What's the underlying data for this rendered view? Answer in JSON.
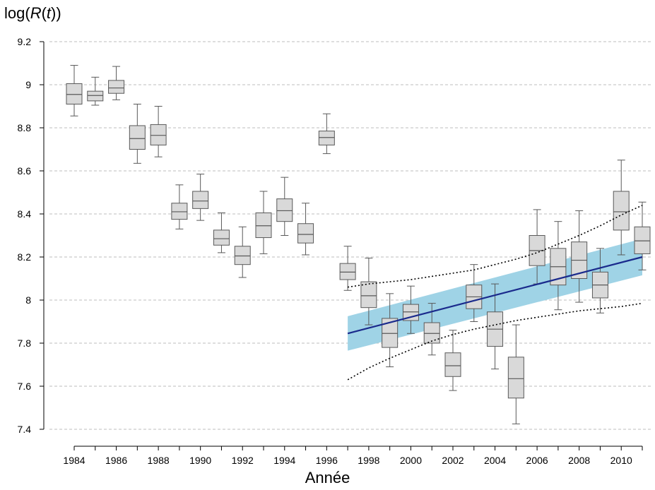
{
  "chart_data": {
    "type": "boxplot",
    "ylabel": "log(R(t))",
    "ylabel_parts": {
      "prefix": "log(",
      "fn": "R",
      "paren_open": "(",
      "var": "t",
      "suffix": "))"
    },
    "xlabel": "Année",
    "ylim": [
      7.4,
      9.2
    ],
    "yticks": [
      7.4,
      7.6,
      7.8,
      8,
      8.2,
      8.4,
      8.6,
      8.8,
      9,
      9.2
    ],
    "ytick_labels": [
      "7.4",
      "7.6",
      "7.8",
      "8",
      "8.2",
      "8.4",
      "8.6",
      "8.8",
      "9",
      "9.2"
    ],
    "xlim": [
      1984,
      2011
    ],
    "xticks": [
      1984,
      1986,
      1988,
      1990,
      1992,
      1994,
      1996,
      1998,
      2000,
      2002,
      2004,
      2006,
      2008,
      2010
    ],
    "xtick_labels": [
      "1984",
      "1986",
      "1988",
      "1990",
      "1992",
      "1994",
      "1996",
      "1998",
      "2000",
      "2002",
      "2004",
      "2006",
      "2008",
      "2010"
    ],
    "grid": "horizontal-dashed",
    "colors": {
      "box_fill": "#d9d9d9",
      "box_stroke": "#595959",
      "trend_line": "#1a2a8c",
      "band": "#9fd3e6",
      "grid": "#bdbdbd"
    },
    "boxes": [
      {
        "year": 1984,
        "whisker_low": 8.855,
        "q1": 8.91,
        "median": 8.955,
        "q3": 9.005,
        "whisker_high": 9.09
      },
      {
        "year": 1985,
        "whisker_low": 8.905,
        "q1": 8.925,
        "median": 8.95,
        "q3": 8.97,
        "whisker_high": 9.035
      },
      {
        "year": 1986,
        "whisker_low": 8.93,
        "q1": 8.96,
        "median": 8.985,
        "q3": 9.02,
        "whisker_high": 9.085
      },
      {
        "year": 1987,
        "whisker_low": 8.635,
        "q1": 8.7,
        "median": 8.75,
        "q3": 8.81,
        "whisker_high": 8.91
      },
      {
        "year": 1988,
        "whisker_low": 8.665,
        "q1": 8.72,
        "median": 8.765,
        "q3": 8.815,
        "whisker_high": 8.9
      },
      {
        "year": 1989,
        "whisker_low": 8.33,
        "q1": 8.375,
        "median": 8.41,
        "q3": 8.45,
        "whisker_high": 8.535
      },
      {
        "year": 1990,
        "whisker_low": 8.37,
        "q1": 8.425,
        "median": 8.46,
        "q3": 8.505,
        "whisker_high": 8.585
      },
      {
        "year": 1991,
        "whisker_low": 8.22,
        "q1": 8.255,
        "median": 8.285,
        "q3": 8.325,
        "whisker_high": 8.405
      },
      {
        "year": 1992,
        "whisker_low": 8.105,
        "q1": 8.165,
        "median": 8.205,
        "q3": 8.25,
        "whisker_high": 8.34
      },
      {
        "year": 1993,
        "whisker_low": 8.215,
        "q1": 8.29,
        "median": 8.345,
        "q3": 8.405,
        "whisker_high": 8.505
      },
      {
        "year": 1994,
        "whisker_low": 8.3,
        "q1": 8.365,
        "median": 8.415,
        "q3": 8.47,
        "whisker_high": 8.57
      },
      {
        "year": 1995,
        "whisker_low": 8.21,
        "q1": 8.265,
        "median": 8.305,
        "q3": 8.355,
        "whisker_high": 8.45
      },
      {
        "year": 1996,
        "whisker_low": 8.68,
        "q1": 8.72,
        "median": 8.755,
        "q3": 8.785,
        "whisker_high": 8.865
      },
      {
        "year": 1997,
        "whisker_low": 8.045,
        "q1": 8.095,
        "median": 8.13,
        "q3": 8.17,
        "whisker_high": 8.25
      },
      {
        "year": 1998,
        "whisker_low": 7.885,
        "q1": 7.965,
        "median": 8.02,
        "q3": 8.085,
        "whisker_high": 8.195
      },
      {
        "year": 1999,
        "whisker_low": 7.69,
        "q1": 7.78,
        "median": 7.845,
        "q3": 7.915,
        "whisker_high": 8.03
      },
      {
        "year": 2000,
        "whisker_low": 7.845,
        "q1": 7.905,
        "median": 7.945,
        "q3": 7.98,
        "whisker_high": 8.065
      },
      {
        "year": 2001,
        "whisker_low": 7.745,
        "q1": 7.8,
        "median": 7.845,
        "q3": 7.895,
        "whisker_high": 7.985
      },
      {
        "year": 2002,
        "whisker_low": 7.58,
        "q1": 7.645,
        "median": 7.695,
        "q3": 7.755,
        "whisker_high": 7.86
      },
      {
        "year": 2003,
        "whisker_low": 7.9,
        "q1": 7.96,
        "median": 8.015,
        "q3": 8.07,
        "whisker_high": 8.165
      },
      {
        "year": 2004,
        "whisker_low": 7.68,
        "q1": 7.785,
        "median": 7.865,
        "q3": 7.945,
        "whisker_high": 8.075
      },
      {
        "year": 2005,
        "whisker_low": 7.425,
        "q1": 7.545,
        "median": 7.635,
        "q3": 7.735,
        "whisker_high": 7.885
      },
      {
        "year": 2006,
        "whisker_low": 8.075,
        "q1": 8.16,
        "median": 8.23,
        "q3": 8.3,
        "whisker_high": 8.42
      },
      {
        "year": 2007,
        "whisker_low": 7.955,
        "q1": 8.07,
        "median": 8.155,
        "q3": 8.24,
        "whisker_high": 8.365
      },
      {
        "year": 2008,
        "whisker_low": 7.99,
        "q1": 8.1,
        "median": 8.185,
        "q3": 8.27,
        "whisker_high": 8.415
      },
      {
        "year": 2009,
        "whisker_low": 7.94,
        "q1": 8.01,
        "median": 8.07,
        "q3": 8.13,
        "whisker_high": 8.24
      },
      {
        "year": 2010,
        "whisker_low": 8.21,
        "q1": 8.325,
        "median": 8.41,
        "q3": 8.505,
        "whisker_high": 8.65
      },
      {
        "year": 2011,
        "whisker_low": 8.14,
        "q1": 8.215,
        "median": 8.275,
        "q3": 8.34,
        "whisker_high": 8.455
      }
    ],
    "trend": {
      "x": [
        1997,
        2011
      ],
      "fit": [
        7.845,
        8.2
      ],
      "band_lower": [
        7.765,
        8.115
      ],
      "band_upper": [
        7.925,
        8.285
      ],
      "prediction_lower": [
        [
          1997,
          7.63
        ],
        [
          1998,
          7.685
        ],
        [
          1999,
          7.73
        ],
        [
          2000,
          7.77
        ],
        [
          2001,
          7.81
        ],
        [
          2002,
          7.84
        ],
        [
          2003,
          7.865
        ],
        [
          2004,
          7.885
        ],
        [
          2005,
          7.905
        ],
        [
          2006,
          7.92
        ],
        [
          2007,
          7.935
        ],
        [
          2008,
          7.95
        ],
        [
          2009,
          7.96
        ],
        [
          2010,
          7.97
        ],
        [
          2011,
          7.985
        ]
      ],
      "prediction_upper": [
        [
          1997,
          8.06
        ],
        [
          1998,
          8.075
        ],
        [
          1999,
          8.085
        ],
        [
          2000,
          8.095
        ],
        [
          2001,
          8.11
        ],
        [
          2002,
          8.125
        ],
        [
          2003,
          8.14
        ],
        [
          2004,
          8.165
        ],
        [
          2005,
          8.19
        ],
        [
          2006,
          8.22
        ],
        [
          2007,
          8.26
        ],
        [
          2008,
          8.3
        ],
        [
          2009,
          8.345
        ],
        [
          2010,
          8.395
        ],
        [
          2011,
          8.44
        ]
      ]
    }
  }
}
